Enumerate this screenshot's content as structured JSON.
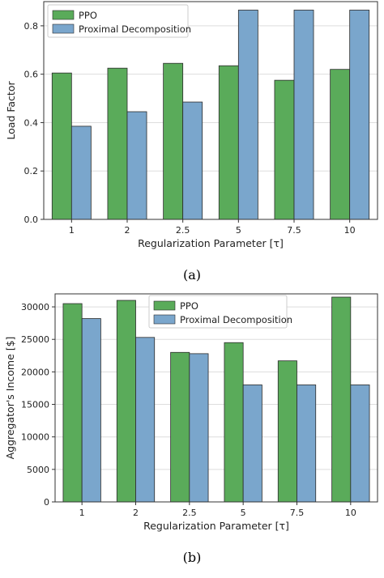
{
  "colors": {
    "ppo": "#5aab5a",
    "prox": "#7aa6cc",
    "grid": "#dddddd",
    "frame": "#333333"
  },
  "captions": {
    "a": "(a)",
    "b": "(b)"
  },
  "chart_data": [
    {
      "type": "bar",
      "categories": [
        "1",
        "2",
        "2.5",
        "5",
        "7.5",
        "10"
      ],
      "series": [
        {
          "name": "PPO",
          "values": [
            0.605,
            0.625,
            0.645,
            0.635,
            0.575,
            0.62
          ]
        },
        {
          "name": "Proximal Decomposition",
          "values": [
            0.385,
            0.445,
            0.485,
            0.865,
            0.865,
            0.865
          ]
        }
      ],
      "xlabel": "Regularization Parameter [τ]",
      "ylabel": "Load Factor",
      "ylim": [
        0,
        0.9
      ],
      "yticks": [
        0.0,
        0.2,
        0.4,
        0.6,
        0.8
      ],
      "ytick_labels": [
        "0.0",
        "0.2",
        "0.4",
        "0.6",
        "0.8"
      ],
      "grid": "horizontal",
      "legend": "top-left"
    },
    {
      "type": "bar",
      "categories": [
        "1",
        "2",
        "2.5",
        "5",
        "7.5",
        "10"
      ],
      "series": [
        {
          "name": "PPO",
          "values": [
            30500,
            31000,
            23000,
            24500,
            21700,
            31500
          ]
        },
        {
          "name": "Proximal Decomposition",
          "values": [
            28200,
            25300,
            22800,
            18000,
            18000,
            18000
          ]
        }
      ],
      "xlabel": "Regularization Parameter [τ]",
      "ylabel": "Aggregator's Income [$]",
      "ylim": [
        0,
        32000
      ],
      "yticks": [
        0,
        5000,
        10000,
        15000,
        20000,
        25000,
        30000
      ],
      "ytick_labels": [
        "0",
        "5000",
        "10000",
        "15000",
        "20000",
        "25000",
        "30000"
      ],
      "grid": "horizontal",
      "legend": "top-center"
    }
  ]
}
